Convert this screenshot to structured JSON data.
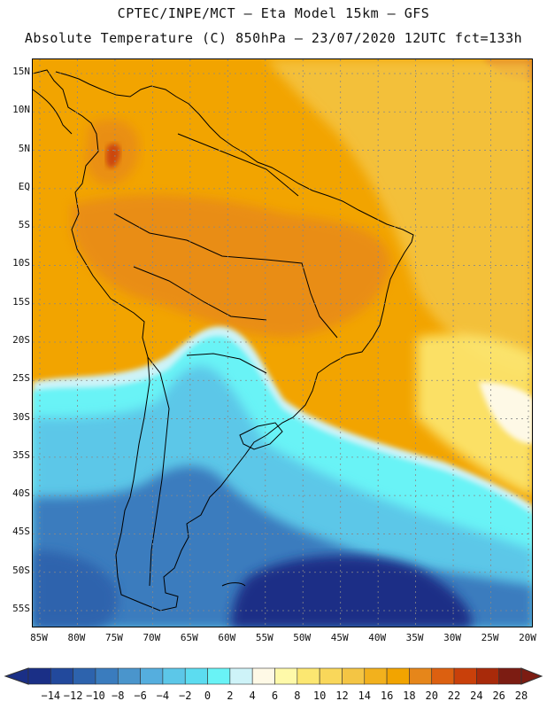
{
  "header": {
    "line1": "CPTEC/INPE/MCT –  Eta Model 15km – GFS",
    "line2": "Absolute Temperature (C) 850hPa – 23/07/2020 12UTC fct=133h"
  },
  "map": {
    "lat_labels": [
      "15N",
      "10N",
      "5N",
      "EQ",
      "5S",
      "10S",
      "15S",
      "20S",
      "25S",
      "30S",
      "35S",
      "40S",
      "45S",
      "50S",
      "55S"
    ],
    "lat_values": [
      15,
      10,
      5,
      0,
      -5,
      -10,
      -15,
      -20,
      -25,
      -30,
      -35,
      -40,
      -45,
      -50,
      -55
    ],
    "lon_labels": [
      "85W",
      "80W",
      "75W",
      "70W",
      "65W",
      "60W",
      "55W",
      "50W",
      "45W",
      "40W",
      "35W",
      "30W",
      "25W",
      "20W"
    ],
    "lon_values": [
      -85,
      -80,
      -75,
      -70,
      -65,
      -60,
      -55,
      -50,
      -45,
      -40,
      -35,
      -30,
      -25,
      -20
    ]
  },
  "colorbar": {
    "labels": [
      "-14",
      "-12",
      "-10",
      "-8",
      "-6",
      "-4",
      "-2",
      "0",
      "2",
      "4",
      "6",
      "8",
      "10",
      "12",
      "14",
      "16",
      "18",
      "20",
      "22",
      "24",
      "26",
      "28"
    ],
    "colors": [
      "#1a2f86",
      "#22499c",
      "#2d63ad",
      "#3a7cbe",
      "#4a95cc",
      "#55aede",
      "#5cc7e8",
      "#5cdcf0",
      "#69f3f6",
      "#cef3f8",
      "#fef9e6",
      "#fef9a9",
      "#fce771",
      "#f9d75a",
      "#f4c544",
      "#f2b11d",
      "#f2a400",
      "#e6861a",
      "#dc6010",
      "#c9400a",
      "#a82a0a",
      "#7c1c12"
    ],
    "under_color": "#1a2f86",
    "over_color": "#7c1c12"
  }
}
